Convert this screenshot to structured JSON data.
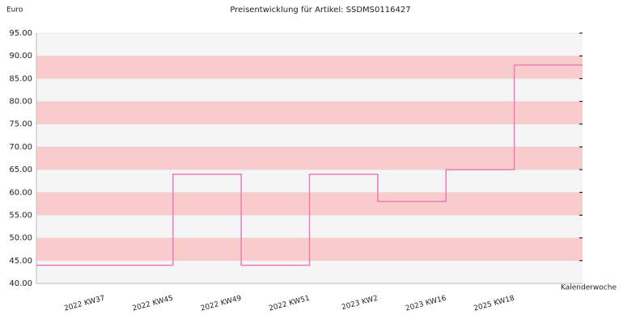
{
  "chart_data": {
    "type": "step",
    "title": "Preisentwicklung für Artikel: SSDMS0116427",
    "y_label": "Euro",
    "x_label": "Kalenderwoche",
    "categories": [
      "2022 KW37",
      "2022 KW45",
      "2022 KW49",
      "2022 KW51",
      "2023 KW2",
      "2023 KW16",
      "2025 KW18"
    ],
    "values": [
      44,
      64,
      44,
      64,
      58,
      65,
      88
    ],
    "color": "#f07ab8",
    "ylim": [
      40,
      95
    ],
    "yticks": [
      {
        "value": 40,
        "label": "40.00"
      },
      {
        "value": 45,
        "label": "45.00"
      },
      {
        "value": 50,
        "label": "50.00"
      },
      {
        "value": 55,
        "label": "55.00"
      },
      {
        "value": 60,
        "label": "60.00"
      },
      {
        "value": 65,
        "label": "65.00"
      },
      {
        "value": 70,
        "label": "70.00"
      },
      {
        "value": 75,
        "label": "75.00"
      },
      {
        "value": 80,
        "label": "80.00"
      },
      {
        "value": 85,
        "label": "85.00"
      },
      {
        "value": 90,
        "label": "90.00"
      },
      {
        "value": 95,
        "label": "95.00"
      }
    ],
    "band_colors": [
      "#f5f5f5",
      "#f8cccc"
    ]
  }
}
